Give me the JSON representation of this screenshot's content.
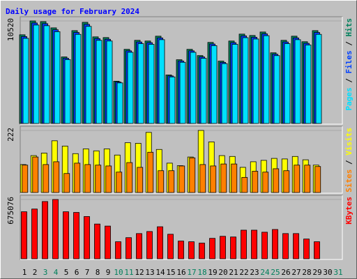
{
  "chart_data": [
    {
      "type": "bar",
      "title": "Daily usage for February 2024",
      "ylim": [
        0,
        10520
      ],
      "yticks": [
        10520
      ],
      "grid": true,
      "legend_separator": " / ",
      "series": [
        {
          "name": "Hits",
          "color": "#00805C",
          "values": [
            9098,
            10520,
            10449,
            9809,
            6824,
            9525,
            10378,
            8885,
            8814,
            4336,
            7606,
            8530,
            8459,
            8956,
            4976,
            6539,
            7606,
            6966,
            8317,
            6397,
            8459,
            9169,
            9027,
            9383,
            7250,
            8530,
            8956,
            8388,
            9525,
            null,
            null
          ]
        },
        {
          "name": "Files",
          "color": "#0040FF",
          "values": [
            8916,
            10310,
            10240,
            9613,
            6688,
            9335,
            10170,
            8707,
            8638,
            4249,
            7454,
            8359,
            8290,
            8777,
            4876,
            6408,
            7454,
            6827,
            8151,
            6269,
            8290,
            8986,
            8846,
            9195,
            7105,
            8359,
            8777,
            8220,
            9335,
            null,
            null
          ]
        },
        {
          "name": "Pages",
          "color": "#00E0FF",
          "values": [
            8734,
            10099,
            10031,
            9417,
            6551,
            9144,
            9963,
            8530,
            8461,
            4163,
            7302,
            8189,
            8121,
            8598,
            4777,
            6277,
            7302,
            6687,
            7984,
            6141,
            8121,
            8802,
            8666,
            9008,
            6960,
            8189,
            8598,
            8052,
            9144,
            null,
            null
          ]
        }
      ]
    },
    {
      "type": "bar",
      "ylim": [
        0,
        222
      ],
      "yticks": [
        222
      ],
      "grid": true,
      "legend_separator": " / ",
      "series": [
        {
          "name": "Visits",
          "color": "#FFFF00",
          "values": [
            100,
            132,
            141,
            185,
            166,
            139,
            156,
            149,
            156,
            134,
            178,
            176,
            215,
            154,
            105,
            96,
            127,
            222,
            181,
            132,
            129,
            90,
            110,
            115,
            122,
            120,
            129,
            117,
            98,
            null,
            null
          ]
        },
        {
          "name": "Sites",
          "color": "#FF8000",
          "values": [
            98,
            127,
            100,
            110,
            68,
            105,
            100,
            98,
            95,
            73,
            107,
            90,
            144,
            78,
            78,
            95,
            124,
            100,
            95,
            102,
            102,
            54,
            76,
            73,
            85,
            78,
            98,
            98,
            93,
            null,
            null
          ]
        }
      ]
    },
    {
      "type": "bar",
      "ylim": [
        0,
        675076
      ],
      "yticks": [
        675076
      ],
      "grid": true,
      "categories": [
        "1",
        "2",
        "3",
        "4",
        "5",
        "6",
        "7",
        "8",
        "9",
        "10",
        "11",
        "12",
        "13",
        "14",
        "15",
        "16",
        "17",
        "18",
        "19",
        "20",
        "21",
        "22",
        "23",
        "24",
        "25",
        "26",
        "27",
        "28",
        "29",
        "30",
        "31"
      ],
      "category_colors": [
        "#000000",
        "#000000",
        "#00805C",
        "#00805C",
        "#000000",
        "#000000",
        "#000000",
        "#000000",
        "#000000",
        "#00805C",
        "#00805C",
        "#000000",
        "#000000",
        "#000000",
        "#000000",
        "#000000",
        "#00805C",
        "#00805C",
        "#000000",
        "#000000",
        "#000000",
        "#000000",
        "#000000",
        "#00805C",
        "#00805C",
        "#000000",
        "#000000",
        "#000000",
        "#000000",
        "#000000",
        "#00805C"
      ],
      "series": [
        {
          "name": "KBytes",
          "color": "#FF0000",
          "values": [
            535376,
            566412,
            651799,
            675076,
            535376,
            527609,
            481054,
            395709,
            372431,
            193981,
            240535,
            287089,
            310366,
            364672,
            279330,
            201738,
            193981,
            178465,
            232776,
            256052,
            248293,
            325882,
            325882,
            302605,
            333642,
            287089,
            287089,
            225017,
            193981,
            null,
            null
          ]
        }
      ]
    }
  ]
}
